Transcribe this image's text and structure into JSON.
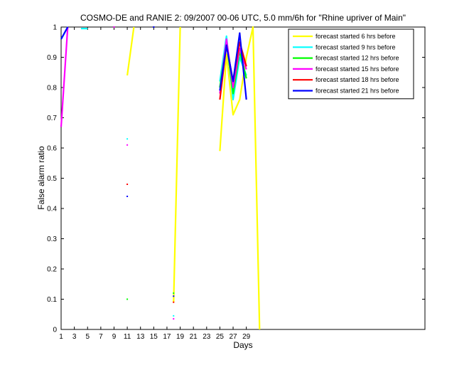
{
  "chart_data": {
    "type": "line",
    "title": "COSMO-DE and RANIE 2: 09/2007 00-06 UTC, 5.0 mm/6h for \"Rhine upriver of Main\"",
    "xlabel": "Days",
    "ylabel": "False alarm ratio",
    "xlim": [
      1,
      56
    ],
    "ylim": [
      0,
      1
    ],
    "xticks": [
      "1",
      "3",
      "5",
      "7",
      "9",
      "11",
      "13",
      "15",
      "17",
      "19",
      "21",
      "23",
      "25",
      "27",
      "29"
    ],
    "xtick_values": [
      1,
      3,
      5,
      7,
      9,
      11,
      13,
      15,
      17,
      19,
      21,
      23,
      25,
      27,
      29
    ],
    "yticks": [
      "0",
      "0.1",
      "0.2",
      "0.3",
      "0.4",
      "0.5",
      "0.6",
      "0.7",
      "0.8",
      "0.9",
      "1"
    ],
    "ytick_values": [
      0,
      0.1,
      0.2,
      0.3,
      0.4,
      0.5,
      0.6,
      0.7,
      0.8,
      0.9,
      1
    ],
    "legend_position": "top-right",
    "grid": false,
    "series": [
      {
        "name": "forecast started 6 hrs before",
        "color": "#ffff00",
        "segments": [
          [
            [
              11,
              0.84
            ],
            [
              12,
              1.0
            ]
          ],
          [
            [
              18,
              0.09
            ],
            [
              19,
              1.0
            ]
          ],
          [
            [
              25,
              0.59
            ],
            [
              26,
              0.91
            ],
            [
              27,
              0.71
            ],
            [
              28,
              0.76
            ],
            [
              29,
              0.9
            ],
            [
              30,
              1.0
            ],
            [
              31,
              0.0
            ]
          ]
        ],
        "points": []
      },
      {
        "name": "forecast started 9 hrs before",
        "color": "#00ffff",
        "segments": [
          [
            [
              1,
              0.96
            ],
            [
              2,
              1.0
            ]
          ],
          [
            [
              4,
              0.995
            ],
            [
              5,
              0.995
            ]
          ],
          [
            [
              25,
              0.82
            ],
            [
              26,
              0.97
            ],
            [
              27,
              0.76
            ],
            [
              28,
              0.9
            ],
            [
              29,
              0.84
            ]
          ]
        ],
        "points": [
          [
            11,
            0.63
          ],
          [
            18,
            0.045
          ]
        ]
      },
      {
        "name": "forecast started 12 hrs before",
        "color": "#00ff00",
        "segments": [
          [
            [
              25,
              0.8
            ],
            [
              26,
              0.95
            ],
            [
              27,
              0.78
            ],
            [
              28,
              0.92
            ],
            [
              29,
              0.83
            ]
          ]
        ],
        "points": [
          [
            11,
            0.1
          ],
          [
            18,
            0.12
          ]
        ]
      },
      {
        "name": "forecast started 15 hrs before",
        "color": "#ff00ff",
        "segments": [
          [
            [
              1,
              0.67
            ],
            [
              2,
              1.0
            ]
          ],
          [
            [
              25,
              0.78
            ],
            [
              26,
              0.96
            ],
            [
              27,
              0.8
            ],
            [
              28,
              0.93
            ],
            [
              29,
              0.86
            ]
          ]
        ],
        "points": [
          [
            9,
            1.0
          ],
          [
            11,
            0.61
          ],
          [
            18,
            0.035
          ]
        ]
      },
      {
        "name": "forecast started 18 hrs before",
        "color": "#ff0000",
        "segments": [
          [
            [
              25,
              0.76
            ],
            [
              26,
              0.94
            ],
            [
              27,
              0.82
            ],
            [
              28,
              0.95
            ],
            [
              29,
              0.87
            ]
          ]
        ],
        "points": [
          [
            11,
            0.48
          ],
          [
            18,
            0.09
          ]
        ]
      },
      {
        "name": "forecast started 21 hrs before",
        "color": "#0000ff",
        "segments": [
          [
            [
              1,
              0.96
            ],
            [
              2,
              1.0
            ]
          ],
          [
            [
              25,
              0.79
            ],
            [
              26,
              0.94
            ],
            [
              27,
              0.82
            ],
            [
              28,
              0.98
            ],
            [
              29,
              0.76
            ]
          ]
        ],
        "points": [
          [
            11,
            0.44
          ],
          [
            18,
            0.11
          ],
          [
            15,
            1.0
          ]
        ]
      }
    ]
  }
}
